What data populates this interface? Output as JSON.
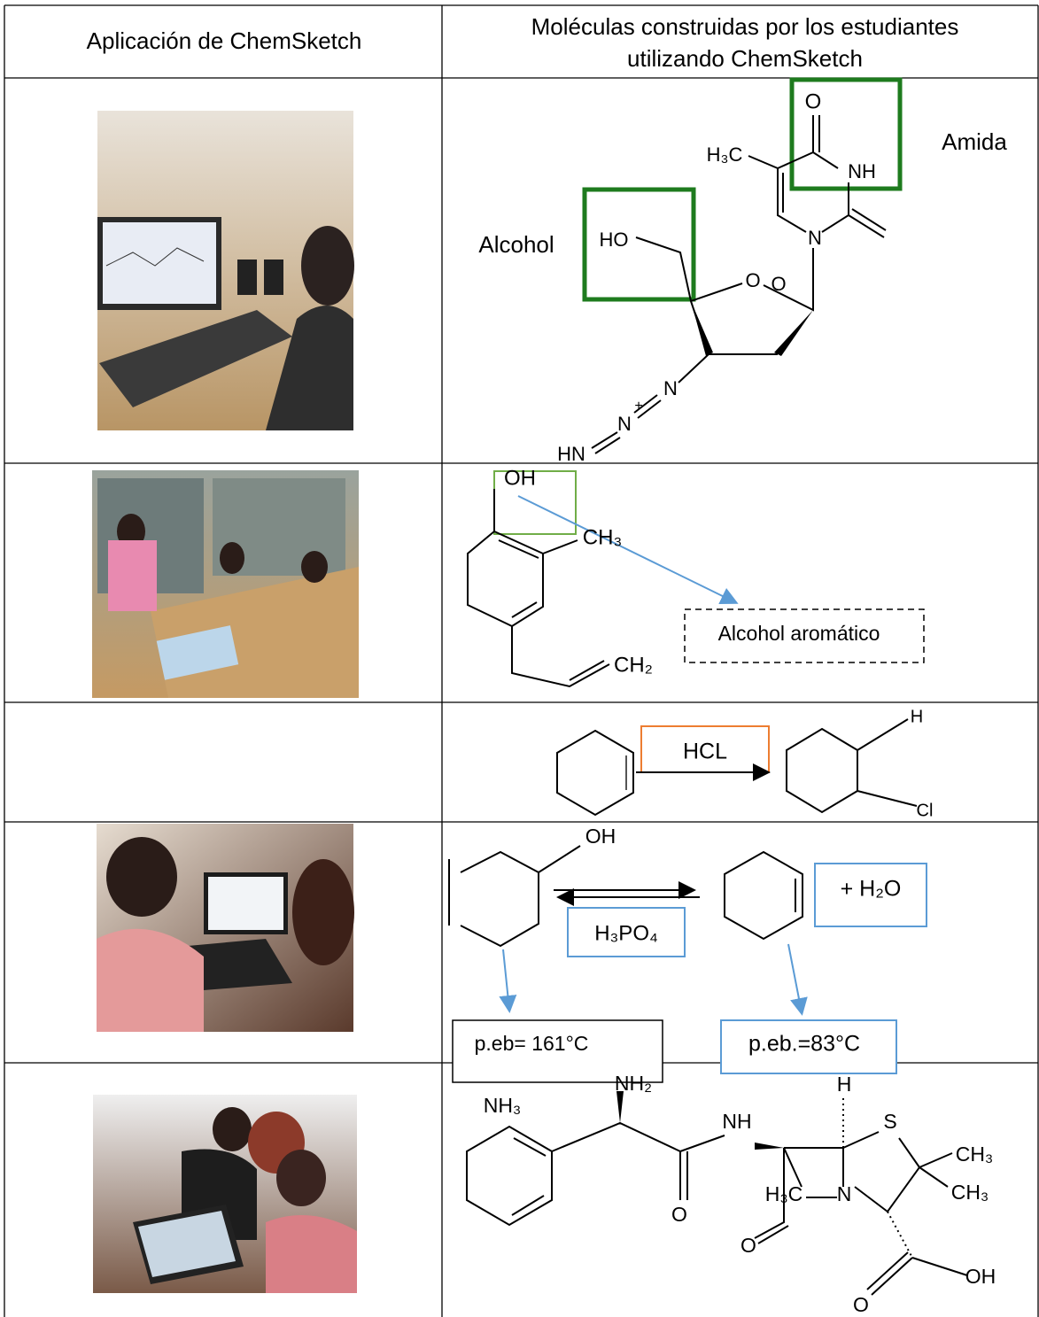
{
  "header": {
    "column_1": "Aplicación de ChemSketch",
    "column_2_lines": [
      "Moléculas construidas por los estudiantes",
      "utilizando ChemSketch"
    ]
  },
  "rows": [
    {
      "labels": [
        "O",
        "H₃C",
        "NH",
        "N",
        "Amida",
        "Alcohol",
        "HO",
        "O",
        "O",
        "N",
        "N",
        "+",
        "HN"
      ]
    },
    {
      "labels": [
        "OH",
        "CH₃",
        "CH₂",
        "Alcohol aromático"
      ]
    },
    {
      "labels": [
        "HCL",
        "H",
        "Cl"
      ]
    },
    {
      "labels": [
        "OH",
        "+ H₂O",
        "H₃PO₄",
        "p.eb= 161°C",
        "p.eb.=83°C"
      ]
    },
    {
      "labels": [
        "NH₃",
        "NH₂",
        "NH",
        "H",
        "S",
        "CH₃",
        "CH₃",
        "H₃C",
        "N",
        "O",
        "O",
        "OH",
        "O"
      ]
    }
  ]
}
